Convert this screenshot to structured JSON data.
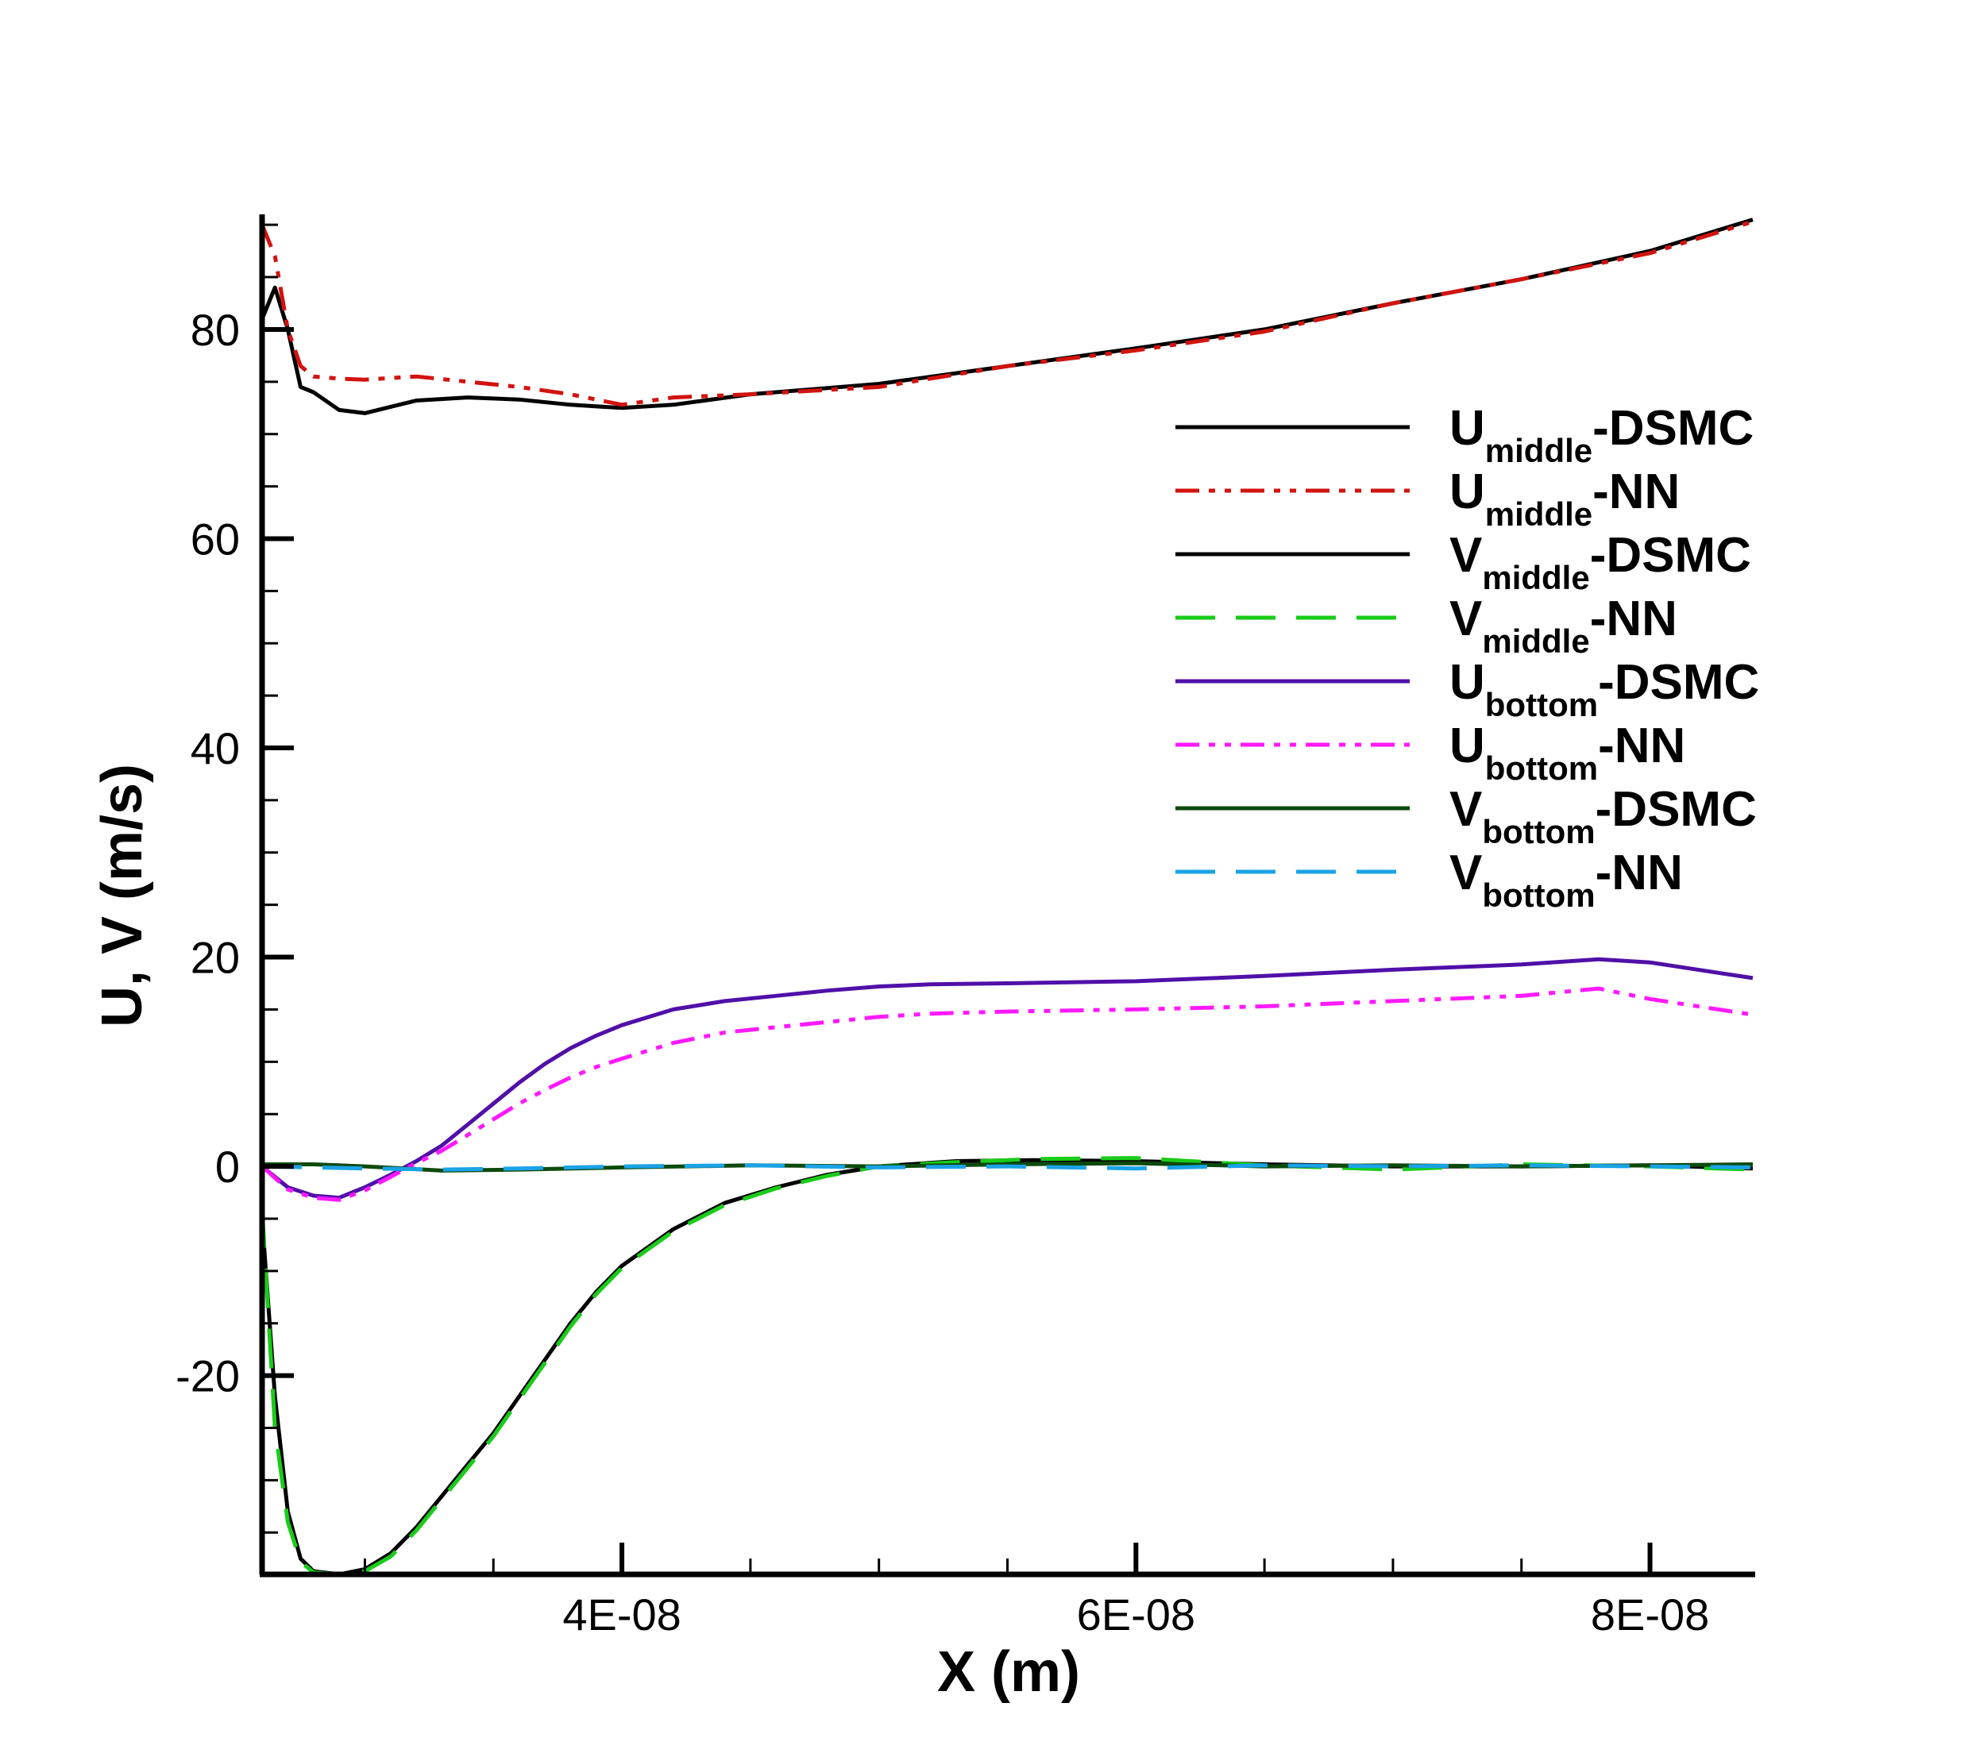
{
  "chart_data": {
    "type": "line",
    "title": "",
    "xlabel": "X (m)",
    "ylabel": "U, V (m/s)",
    "xlim": [
      2.6e-08,
      8.4e-08
    ],
    "ylim": [
      -39,
      91
    ],
    "x_ticks": [
      {
        "value": 4e-08,
        "label": "4E-08"
      },
      {
        "value": 6e-08,
        "label": "6E-08"
      },
      {
        "value": 8e-08,
        "label": "8E-08"
      }
    ],
    "y_ticks": [
      {
        "value": -20,
        "label": "-20"
      },
      {
        "value": 0,
        "label": "0"
      },
      {
        "value": 20,
        "label": "20"
      },
      {
        "value": 40,
        "label": "40"
      },
      {
        "value": 60,
        "label": "60"
      },
      {
        "value": 80,
        "label": "80"
      }
    ],
    "grid": false,
    "legend_position": "right",
    "series": [
      {
        "name": "Umiddle-DSMC",
        "base": "U",
        "sub": "middle",
        "suffix": "-DSMC",
        "color": "#000000",
        "style": "solid",
        "x": [
          2.6e-08,
          2.65e-08,
          2.7e-08,
          2.75e-08,
          2.8e-08,
          2.9e-08,
          3e-08,
          3.2e-08,
          3.4e-08,
          3.6e-08,
          3.8e-08,
          4e-08,
          4.2e-08,
          4.5e-08,
          5e-08,
          5.5e-08,
          6e-08,
          6.5e-08,
          7e-08,
          7.5e-08,
          8e-08,
          8.4e-08
        ],
        "y": [
          81.0,
          84.0,
          80.0,
          74.5,
          74.0,
          72.3,
          72.0,
          73.2,
          73.5,
          73.3,
          72.8,
          72.5,
          72.8,
          73.8,
          74.8,
          76.5,
          78.2,
          80.0,
          82.5,
          84.8,
          87.5,
          90.5
        ]
      },
      {
        "name": "Umiddle-NN",
        "base": "U",
        "sub": "middle",
        "suffix": "-NN",
        "color": "#d2130f",
        "style": "dashdotdot",
        "x": [
          2.6e-08,
          2.65e-08,
          2.7e-08,
          2.75e-08,
          2.8e-08,
          2.9e-08,
          3e-08,
          3.2e-08,
          3.4e-08,
          3.6e-08,
          3.8e-08,
          4e-08,
          4.2e-08,
          4.5e-08,
          5e-08,
          5.5e-08,
          6e-08,
          6.5e-08,
          7e-08,
          7.5e-08,
          8e-08,
          8.4e-08
        ],
        "y": [
          90.0,
          87.0,
          80.0,
          76.5,
          75.5,
          75.3,
          75.2,
          75.5,
          75.0,
          74.5,
          73.8,
          72.8,
          73.5,
          73.8,
          74.5,
          76.5,
          78.0,
          79.8,
          82.5,
          84.8,
          87.3,
          90.3
        ]
      },
      {
        "name": "Vmiddle-DSMC",
        "base": "V",
        "sub": "middle",
        "suffix": "-DSMC",
        "color": "#000000",
        "style": "solid",
        "x": [
          2.6e-08,
          2.65e-08,
          2.7e-08,
          2.75e-08,
          2.8e-08,
          2.9e-08,
          3e-08,
          3.1e-08,
          3.2e-08,
          3.3e-08,
          3.4e-08,
          3.5e-08,
          3.6e-08,
          3.7e-08,
          3.8e-08,
          3.9e-08,
          4e-08,
          4.2e-08,
          4.4e-08,
          4.6e-08,
          4.8e-08,
          5e-08,
          5.3e-08,
          5.6e-08,
          6e-08,
          6.5e-08,
          7e-08,
          7.5e-08,
          8e-08,
          8.4e-08
        ],
        "y": [
          -5.0,
          -22.0,
          -33.0,
          -37.5,
          -38.7,
          -39.0,
          -38.5,
          -37.0,
          -34.5,
          -31.5,
          -28.5,
          -25.5,
          -22.0,
          -18.5,
          -15.0,
          -12.0,
          -9.5,
          -6.0,
          -3.5,
          -2.0,
          -0.8,
          0.0,
          0.5,
          0.6,
          0.5,
          0.2,
          0.0,
          0.0,
          0.1,
          -0.2
        ]
      },
      {
        "name": "Vmiddle-NN",
        "base": "V",
        "sub": "middle",
        "suffix": "-NN",
        "color": "#19cc19",
        "style": "dashed",
        "x": [
          2.6e-08,
          2.65e-08,
          2.7e-08,
          2.75e-08,
          2.8e-08,
          2.9e-08,
          3e-08,
          3.1e-08,
          3.2e-08,
          3.3e-08,
          3.4e-08,
          3.5e-08,
          3.6e-08,
          3.7e-08,
          3.8e-08,
          3.9e-08,
          4e-08,
          4.2e-08,
          4.4e-08,
          4.6e-08,
          4.8e-08,
          5e-08,
          5.3e-08,
          5.6e-08,
          6e-08,
          6.5e-08,
          7e-08,
          7.5e-08,
          8e-08,
          8.4e-08
        ],
        "y": [
          -4.0,
          -25.0,
          -34.0,
          -37.8,
          -38.8,
          -39.0,
          -38.7,
          -37.3,
          -34.8,
          -31.8,
          -28.8,
          -25.8,
          -22.3,
          -18.8,
          -15.3,
          -12.2,
          -9.7,
          -6.2,
          -3.7,
          -2.1,
          -0.9,
          0.0,
          0.4,
          0.7,
          0.8,
          0.1,
          -0.3,
          0.2,
          0.0,
          -0.3
        ]
      },
      {
        "name": "Ubottom-DSMC",
        "base": "U",
        "sub": "bottom",
        "suffix": "-DSMC",
        "color": "#5010a8",
        "style": "solid",
        "x": [
          2.6e-08,
          2.7e-08,
          2.8e-08,
          2.9e-08,
          3e-08,
          3.1e-08,
          3.2e-08,
          3.3e-08,
          3.4e-08,
          3.5e-08,
          3.6e-08,
          3.7e-08,
          3.8e-08,
          3.9e-08,
          4e-08,
          4.2e-08,
          4.4e-08,
          4.6e-08,
          4.8e-08,
          5e-08,
          5.2e-08,
          5.5e-08,
          6e-08,
          6.5e-08,
          7e-08,
          7.5e-08,
          7.8e-08,
          8e-08,
          8.4e-08
        ],
        "y": [
          0.0,
          -2.0,
          -2.8,
          -3.0,
          -2.0,
          -0.8,
          0.5,
          2.0,
          4.0,
          6.0,
          8.0,
          9.8,
          11.3,
          12.5,
          13.5,
          15.0,
          15.8,
          16.3,
          16.8,
          17.2,
          17.4,
          17.5,
          17.7,
          18.2,
          18.8,
          19.3,
          19.8,
          19.5,
          18.0
        ]
      },
      {
        "name": "Ubottom-NN",
        "base": "U",
        "sub": "bottom",
        "suffix": "-NN",
        "color": "#ff19ff",
        "style": "dashdotdot",
        "x": [
          2.6e-08,
          2.7e-08,
          2.8e-08,
          2.9e-08,
          3e-08,
          3.1e-08,
          3.2e-08,
          3.3e-08,
          3.4e-08,
          3.5e-08,
          3.6e-08,
          3.7e-08,
          3.8e-08,
          3.9e-08,
          4e-08,
          4.2e-08,
          4.4e-08,
          4.6e-08,
          4.8e-08,
          5e-08,
          5.2e-08,
          5.5e-08,
          6e-08,
          6.5e-08,
          7e-08,
          7.5e-08,
          7.8e-08,
          8e-08,
          8.4e-08
        ],
        "y": [
          0.0,
          -2.2,
          -3.0,
          -3.2,
          -2.3,
          -1.0,
          0.3,
          1.5,
          3.0,
          4.5,
          6.0,
          7.3,
          8.5,
          9.5,
          10.3,
          11.8,
          12.8,
          13.3,
          13.8,
          14.3,
          14.6,
          14.8,
          15.0,
          15.3,
          15.8,
          16.3,
          17.0,
          16.0,
          14.5
        ]
      },
      {
        "name": "Vbottom-DSMC",
        "base": "V",
        "sub": "bottom",
        "suffix": "-DSMC",
        "color": "#0c4a0c",
        "style": "solid",
        "x": [
          2.6e-08,
          2.8e-08,
          3e-08,
          3.3e-08,
          3.6e-08,
          4e-08,
          4.5e-08,
          5e-08,
          5.5e-08,
          6e-08,
          6.5e-08,
          7e-08,
          7.5e-08,
          8e-08,
          8.4e-08
        ],
        "y": [
          0.2,
          0.2,
          0.0,
          -0.4,
          -0.3,
          -0.1,
          0.1,
          0.0,
          0.2,
          0.3,
          0.0,
          0.1,
          0.0,
          0.1,
          0.2
        ]
      },
      {
        "name": "Vbottom-NN",
        "base": "V",
        "sub": "bottom",
        "suffix": "-NN",
        "color": "#1aa3e6",
        "style": "dashed",
        "x": [
          2.6e-08,
          2.8e-08,
          3e-08,
          3.3e-08,
          3.6e-08,
          4e-08,
          4.5e-08,
          5e-08,
          5.5e-08,
          6e-08,
          6.5e-08,
          7e-08,
          7.5e-08,
          8e-08,
          8.4e-08
        ],
        "y": [
          0.0,
          -0.1,
          -0.2,
          -0.3,
          -0.2,
          0.0,
          0.1,
          -0.1,
          0.0,
          -0.2,
          0.1,
          0.0,
          0.1,
          0.0,
          -0.1
        ]
      }
    ]
  }
}
